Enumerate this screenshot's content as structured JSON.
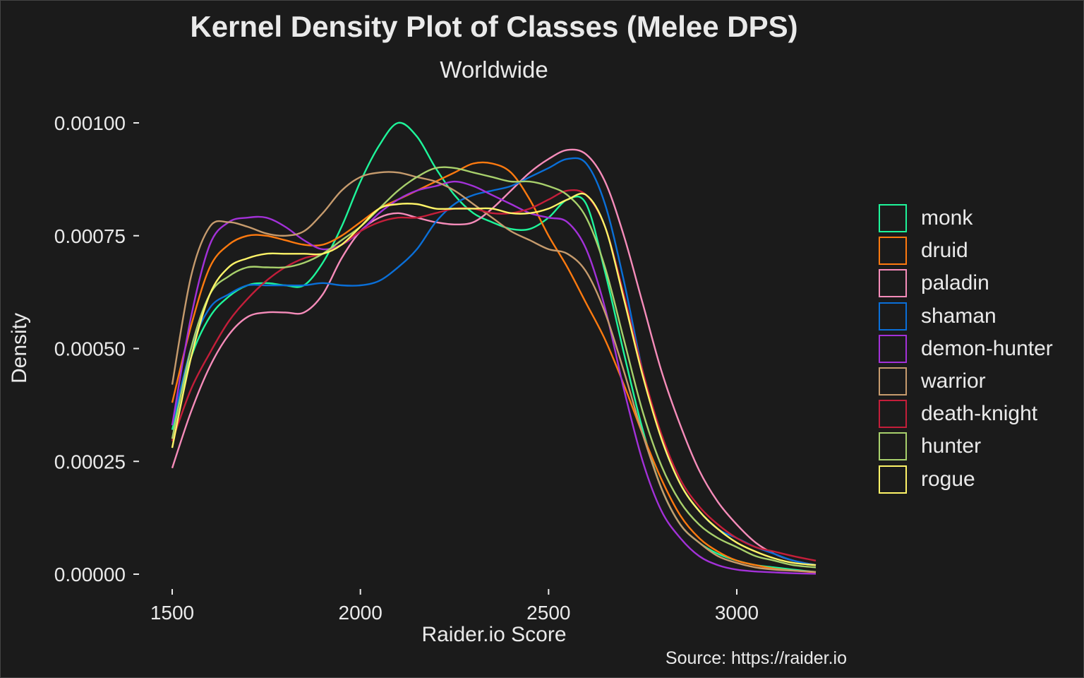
{
  "chart_data": {
    "type": "line",
    "title": "Kernel Density Plot of Classes (Melee DPS)",
    "subtitle": "Worldwide",
    "xlabel": "Raider.io Score",
    "ylabel": "Density",
    "caption": "Source: https://raider.io",
    "xlim": [
      1500,
      3210
    ],
    "ylim": [
      0,
      0.001
    ],
    "x_ticks": [
      1500,
      2000,
      2500,
      3000
    ],
    "x_tick_labels": [
      "1500",
      "2000",
      "2500",
      "3000"
    ],
    "y_ticks": [
      0,
      0.00025,
      0.0005,
      0.00075,
      0.001
    ],
    "y_tick_labels": [
      "0.00000",
      "0.00025",
      "0.00050",
      "0.00075",
      "0.00100"
    ],
    "grid": false,
    "legend_position": "right",
    "x": [
      1500,
      1550,
      1600,
      1650,
      1700,
      1750,
      1800,
      1850,
      1900,
      1950,
      2000,
      2050,
      2100,
      2150,
      2200,
      2250,
      2300,
      2350,
      2400,
      2450,
      2500,
      2550,
      2600,
      2650,
      2700,
      2750,
      2800,
      2850,
      2900,
      2950,
      3000,
      3050,
      3100,
      3150,
      3210
    ],
    "series": [
      {
        "name": "monk",
        "color": "#1ef59a",
        "values": [
          0.00032,
          0.00048,
          0.00057,
          0.000615,
          0.00064,
          0.000645,
          0.00064,
          0.00064,
          0.00069,
          0.00077,
          0.00087,
          0.00095,
          0.001,
          0.00097,
          0.0009,
          0.00084,
          0.0008,
          0.00078,
          0.000765,
          0.000765,
          0.00079,
          0.00083,
          0.00082,
          0.00067,
          0.00049,
          0.00032,
          0.00019,
          0.00011,
          7e-05,
          4.5e-05,
          3e-05,
          2e-05,
          1.5e-05,
          1e-05,
          5e-06
        ]
      },
      {
        "name": "druid",
        "color": "#ff7a0f",
        "values": [
          0.00038,
          0.00055,
          0.00068,
          0.00073,
          0.00075,
          0.00075,
          0.00074,
          0.00073,
          0.00073,
          0.00075,
          0.00078,
          0.00081,
          0.00083,
          0.00085,
          0.00087,
          0.00089,
          0.00091,
          0.00091,
          0.00089,
          0.00083,
          0.00075,
          0.00068,
          0.0006,
          0.00052,
          0.00042,
          0.00031,
          0.00021,
          0.00013,
          8e-05,
          5e-05,
          3e-05,
          2e-05,
          1.2e-05,
          8e-06,
          4e-06
        ]
      },
      {
        "name": "paladin",
        "color": "#f68cba",
        "values": [
          0.000235,
          0.00036,
          0.00046,
          0.00053,
          0.00057,
          0.00058,
          0.00058,
          0.00058,
          0.00062,
          0.0007,
          0.00076,
          0.00079,
          0.0008,
          0.00079,
          0.00078,
          0.000775,
          0.00078,
          0.00081,
          0.00085,
          0.00089,
          0.00092,
          0.00094,
          0.00093,
          0.00087,
          0.00075,
          0.0006,
          0.00045,
          0.00033,
          0.00023,
          0.00016,
          0.00011,
          7e-05,
          4.5e-05,
          3e-05,
          2e-05
        ]
      },
      {
        "name": "shaman",
        "color": "#0a6fd8",
        "values": [
          0.00033,
          0.0005,
          0.00059,
          0.00062,
          0.00064,
          0.00064,
          0.00064,
          0.00064,
          0.000645,
          0.00064,
          0.00064,
          0.00065,
          0.00068,
          0.00072,
          0.00078,
          0.00082,
          0.00084,
          0.00085,
          0.00086,
          0.00088,
          0.0009,
          0.00092,
          0.00091,
          0.00082,
          0.00065,
          0.00045,
          0.0003,
          0.0002,
          0.00014,
          0.0001,
          8e-05,
          6e-05,
          4.5e-05,
          3e-05,
          2e-05
        ]
      },
      {
        "name": "demon-hunter",
        "color": "#a331d8",
        "values": [
          0.00033,
          0.00057,
          0.00073,
          0.00078,
          0.00079,
          0.00079,
          0.00077,
          0.00074,
          0.00072,
          0.00073,
          0.00076,
          0.0008,
          0.00083,
          0.00085,
          0.00086,
          0.00087,
          0.00086,
          0.00084,
          0.00082,
          0.0008,
          0.00079,
          0.00078,
          0.00072,
          0.00059,
          0.00041,
          0.00025,
          0.00014,
          8e-05,
          4e-05,
          2e-05,
          1e-05,
          6e-06,
          4e-06,
          2e-06,
          1e-06
        ]
      },
      {
        "name": "warrior",
        "color": "#c69b6d",
        "values": [
          0.00042,
          0.00066,
          0.00077,
          0.00078,
          0.00077,
          0.000755,
          0.00075,
          0.00076,
          0.0008,
          0.00085,
          0.00088,
          0.00089,
          0.00089,
          0.00088,
          0.00087,
          0.00085,
          0.00082,
          0.00079,
          0.00076,
          0.00074,
          0.00072,
          0.00071,
          0.00067,
          0.00058,
          0.00045,
          0.00031,
          0.00019,
          0.00011,
          7e-05,
          4e-05,
          2.5e-05,
          1.5e-05,
          1e-05,
          8e-06,
          5e-06
        ]
      },
      {
        "name": "death-knight",
        "color": "#c41e3a",
        "values": [
          0.000295,
          0.00041,
          0.00049,
          0.00056,
          0.00061,
          0.00065,
          0.00068,
          0.0007,
          0.00071,
          0.00073,
          0.00076,
          0.00078,
          0.00079,
          0.00079,
          0.0008,
          0.00081,
          0.00081,
          0.0008,
          0.0008,
          0.00081,
          0.00083,
          0.00085,
          0.00084,
          0.00077,
          0.00062,
          0.00045,
          0.00031,
          0.00021,
          0.00015,
          0.00011,
          8e-05,
          6e-05,
          5e-05,
          4e-05,
          3e-05
        ]
      },
      {
        "name": "hunter",
        "color": "#a8d06c",
        "values": [
          0.0003,
          0.0005,
          0.00062,
          0.00066,
          0.00068,
          0.00068,
          0.00068,
          0.00069,
          0.00071,
          0.00074,
          0.00077,
          0.00081,
          0.00085,
          0.00088,
          0.0009,
          0.0009,
          0.00089,
          0.00088,
          0.00087,
          0.00087,
          0.00086,
          0.00084,
          0.00079,
          0.00068,
          0.00052,
          0.00036,
          0.00024,
          0.00016,
          0.00011,
          8e-05,
          6e-05,
          4e-05,
          3e-05,
          2e-05,
          1.5e-05
        ]
      },
      {
        "name": "rogue",
        "color": "#fff468",
        "values": [
          0.00028,
          0.00048,
          0.00062,
          0.00068,
          0.0007,
          0.00071,
          0.00071,
          0.00071,
          0.00071,
          0.00073,
          0.00077,
          0.00081,
          0.00082,
          0.00082,
          0.00081,
          0.00081,
          0.00081,
          0.00081,
          0.0008,
          0.0008,
          0.00081,
          0.00083,
          0.00084,
          0.00077,
          0.00061,
          0.00044,
          0.0003,
          0.0002,
          0.00014,
          0.0001,
          7e-05,
          5e-05,
          3.5e-05,
          2.5e-05,
          2e-05
        ]
      }
    ]
  }
}
